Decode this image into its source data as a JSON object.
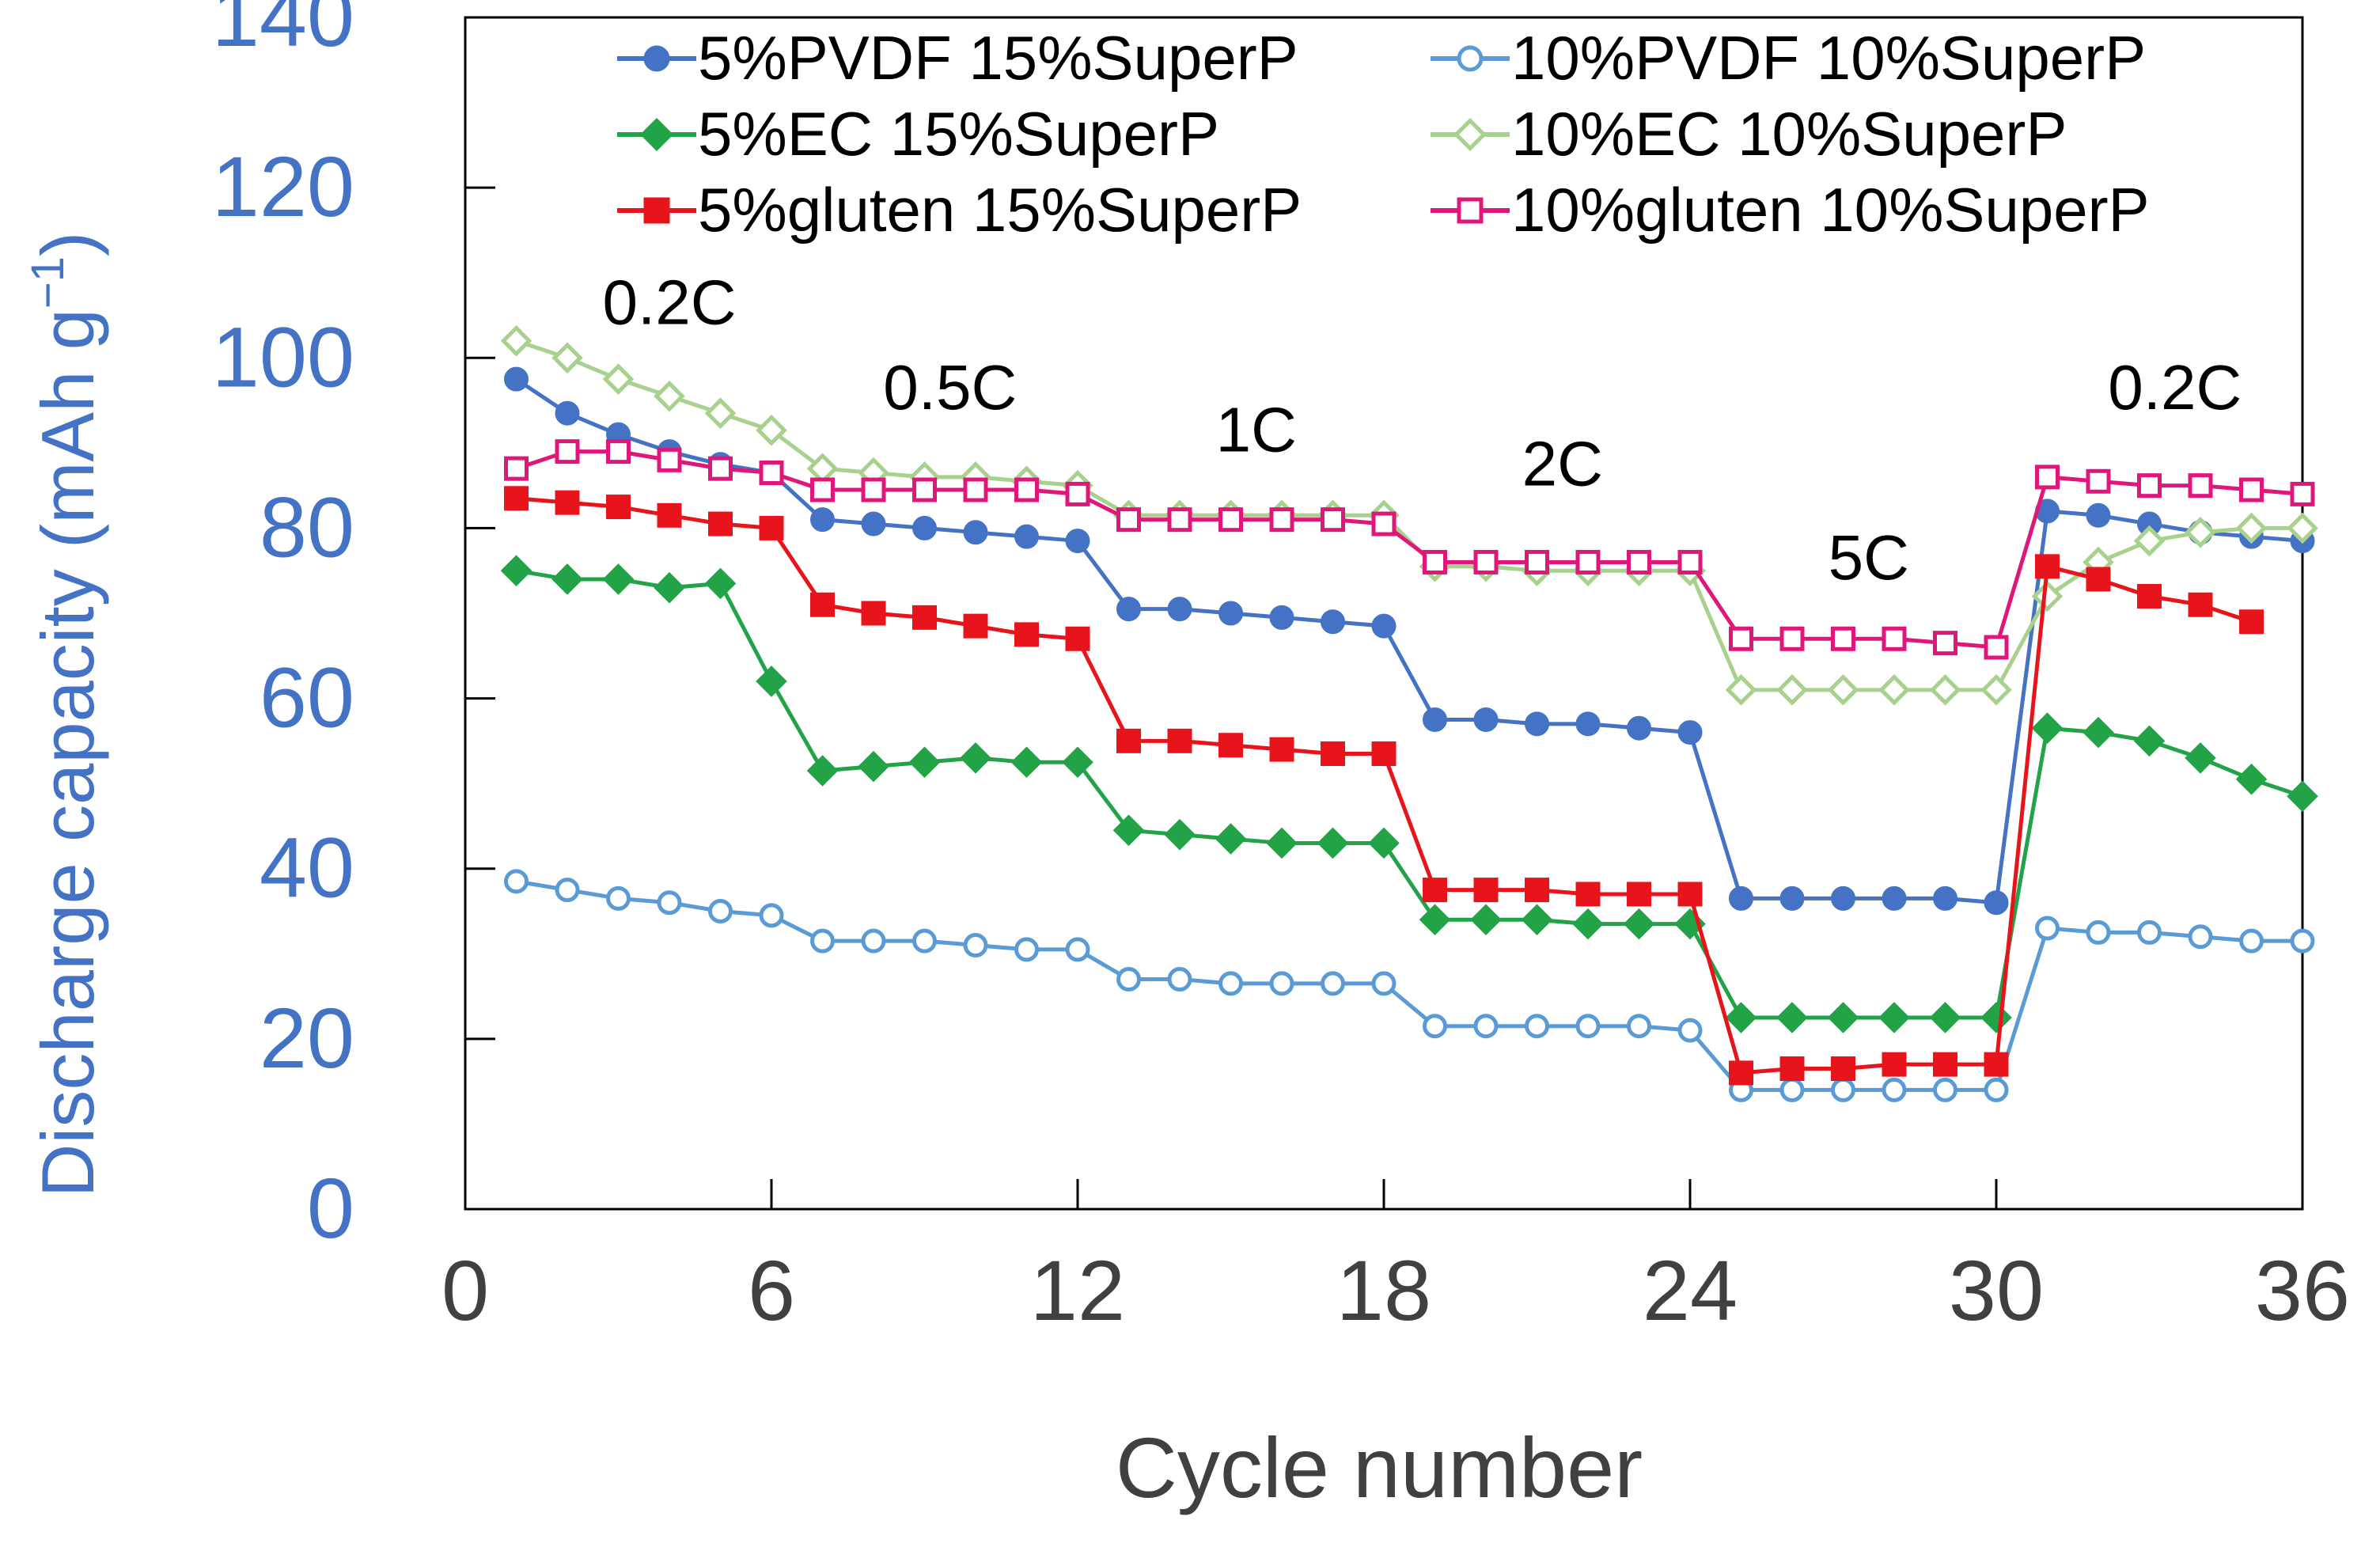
{
  "chart_data": {
    "type": "line",
    "title": "",
    "xlabel": "Cycle number",
    "ylabel_main": "Discharge capacity (mAh g",
    "ylabel_sup": "−1",
    "ylabel_close": ")",
    "xlim": [
      0,
      36
    ],
    "ylim": [
      0,
      140
    ],
    "x_ticks": [
      0,
      6,
      12,
      18,
      24,
      30,
      36
    ],
    "y_ticks": [
      0,
      20,
      40,
      60,
      80,
      100,
      120,
      140
    ],
    "grid": false,
    "legend_position": "top",
    "colors": {
      "axis_tick_labels_x": "#404040",
      "axis_tick_labels_y": "#4472c4",
      "ylabel": "#4472c4",
      "xlabel": "#404040",
      "axis_line": "#000000"
    },
    "rate_labels": [
      {
        "text": "0.2C",
        "x": 4,
        "y": 104
      },
      {
        "text": "0.5C",
        "x": 9.5,
        "y": 94
      },
      {
        "text": "1C",
        "x": 15.5,
        "y": 89
      },
      {
        "text": "2C",
        "x": 21.5,
        "y": 85
      },
      {
        "text": "5C",
        "x": 27.5,
        "y": 74
      },
      {
        "text": "0.2C",
        "x": 33.5,
        "y": 94
      }
    ],
    "series": [
      {
        "name": "5%PVDF 15%SuperP",
        "color": "#4472c4",
        "marker": "circle",
        "filled": true,
        "x": [
          1,
          2,
          3,
          4,
          5,
          6,
          7,
          8,
          9,
          10,
          11,
          12,
          13,
          14,
          15,
          16,
          17,
          18,
          19,
          20,
          21,
          22,
          23,
          24,
          25,
          26,
          27,
          28,
          29,
          30,
          31,
          32,
          33,
          34,
          35,
          36
        ],
        "values": [
          97.5,
          93.5,
          91,
          89,
          87.5,
          86.5,
          81,
          80.5,
          80,
          79.5,
          79,
          78.5,
          70.5,
          70.5,
          70,
          69.5,
          69,
          68.5,
          57.5,
          57.5,
          57,
          57,
          56.5,
          56,
          36.5,
          36.5,
          36.5,
          36.5,
          36.5,
          36,
          82,
          81.5,
          80.5,
          79.5,
          79,
          78.5
        ]
      },
      {
        "name": "10%PVDF 10%SuperP",
        "color": "#5b9bd5",
        "marker": "circle",
        "filled": false,
        "x": [
          1,
          2,
          3,
          4,
          5,
          6,
          7,
          8,
          9,
          10,
          11,
          12,
          13,
          14,
          15,
          16,
          17,
          18,
          19,
          20,
          21,
          22,
          23,
          24,
          25,
          26,
          27,
          28,
          29,
          30,
          31,
          32,
          33,
          34,
          35,
          36
        ],
        "values": [
          38.5,
          37.5,
          36.5,
          36,
          35,
          34.5,
          31.5,
          31.5,
          31.5,
          31,
          30.5,
          30.5,
          27,
          27,
          26.5,
          26.5,
          26.5,
          26.5,
          21.5,
          21.5,
          21.5,
          21.5,
          21.5,
          21,
          14,
          14,
          14,
          14,
          14,
          14,
          33,
          32.5,
          32.5,
          32,
          31.5,
          31.5
        ]
      },
      {
        "name": "5%EC 15%SuperP",
        "color": "#22a347",
        "marker": "diamond",
        "filled": true,
        "x": [
          1,
          2,
          3,
          4,
          5,
          6,
          7,
          8,
          9,
          10,
          11,
          12,
          13,
          14,
          15,
          16,
          17,
          18,
          19,
          20,
          21,
          22,
          23,
          24,
          25,
          26,
          27,
          28,
          29,
          30,
          31,
          32,
          33,
          34,
          35,
          36
        ],
        "values": [
          75,
          74,
          74,
          73,
          73.5,
          62,
          51.5,
          52,
          52.5,
          53,
          52.5,
          52.5,
          44.5,
          44,
          43.5,
          43,
          43,
          43,
          34,
          34,
          34,
          33.5,
          33.5,
          33.5,
          22.5,
          22.5,
          22.5,
          22.5,
          22.5,
          22.5,
          56.5,
          56,
          55,
          53,
          50.5,
          48.5
        ]
      },
      {
        "name": "10%EC 10%SuperP",
        "color": "#a9d18e",
        "marker": "diamond",
        "filled": false,
        "x": [
          1,
          2,
          3,
          4,
          5,
          6,
          7,
          8,
          9,
          10,
          11,
          12,
          13,
          14,
          15,
          16,
          17,
          18,
          19,
          20,
          21,
          22,
          23,
          24,
          25,
          26,
          27,
          28,
          29,
          30,
          31,
          32,
          33,
          34,
          35,
          36
        ],
        "values": [
          102,
          100,
          97.5,
          95.5,
          93.5,
          91.5,
          87,
          86.5,
          86,
          86,
          85.5,
          85,
          81.5,
          81.5,
          81.5,
          81.5,
          81.5,
          81.5,
          75.5,
          75.5,
          75,
          75,
          75,
          75,
          61,
          61,
          61,
          61,
          61,
          61,
          72,
          76,
          78.5,
          79.5,
          80,
          80
        ]
      },
      {
        "name": "5%gluten 15%SuperP",
        "color": "#e8141c",
        "marker": "square",
        "filled": true,
        "x": [
          1,
          2,
          3,
          4,
          5,
          6,
          7,
          8,
          9,
          10,
          11,
          12,
          13,
          14,
          15,
          16,
          17,
          18,
          19,
          20,
          21,
          22,
          23,
          24,
          25,
          26,
          27,
          28,
          29,
          30,
          31,
          32,
          33,
          34,
          35
        ],
        "values": [
          83.5,
          83,
          82.5,
          81.5,
          80.5,
          80,
          71,
          70,
          69.5,
          68.5,
          67.5,
          67,
          55,
          55,
          54.5,
          54,
          53.5,
          53.5,
          37.5,
          37.5,
          37.5,
          37,
          37,
          37,
          16,
          16.5,
          16.5,
          17,
          17,
          17,
          75.5,
          74,
          72,
          71,
          69
        ]
      },
      {
        "name": "10%gluten 10%SuperP",
        "color": "#e0177a",
        "marker": "square",
        "filled": false,
        "x": [
          1,
          2,
          3,
          4,
          5,
          6,
          7,
          8,
          9,
          10,
          11,
          12,
          13,
          14,
          15,
          16,
          17,
          18,
          19,
          20,
          21,
          22,
          23,
          24,
          25,
          26,
          27,
          28,
          29,
          30,
          31,
          32,
          33,
          34,
          35,
          36
        ],
        "values": [
          87,
          89,
          89,
          88,
          87,
          86.5,
          84.5,
          84.5,
          84.5,
          84.5,
          84.5,
          84,
          81,
          81,
          81,
          81,
          81,
          80.5,
          76,
          76,
          76,
          76,
          76,
          76,
          67,
          67,
          67,
          67,
          66.5,
          66,
          86,
          85.5,
          85,
          85,
          84.5,
          84
        ]
      }
    ]
  }
}
